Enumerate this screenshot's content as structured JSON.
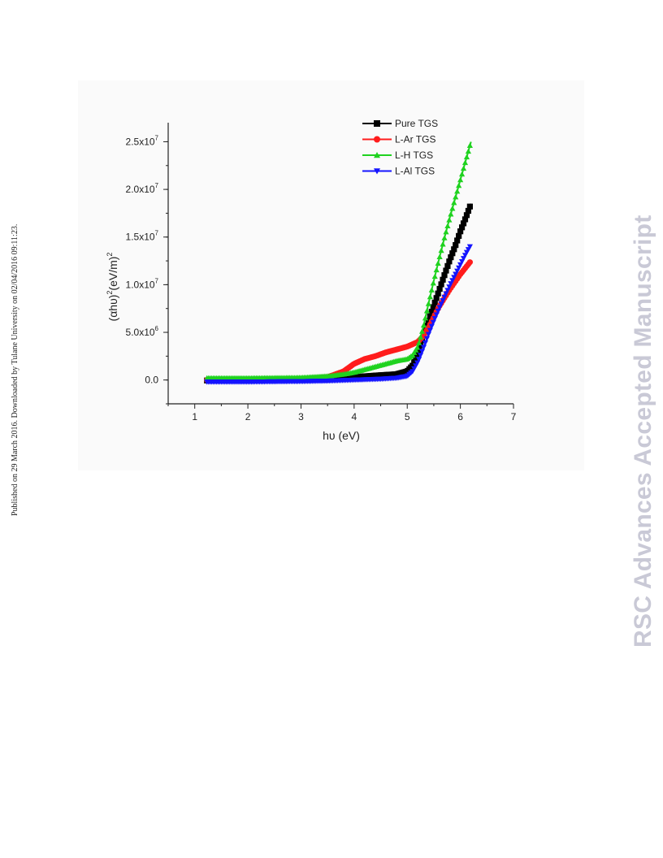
{
  "side_note": "Published on 29 March 2016. Downloaded by Tulane University on 02/04/2016 09:11:23.",
  "watermark": "RSC Advances Accepted Manuscript",
  "chart_data": {
    "type": "scatter",
    "title": "",
    "xlabel": "hυ (eV)",
    "ylabel": "(αhυ)²(eV/m)²",
    "xlim": [
      0.5,
      7
    ],
    "ylim": [
      -2500000,
      27000000
    ],
    "x_ticks": [
      1,
      2,
      3,
      4,
      5,
      6,
      7
    ],
    "x_tick_labels": [
      "1",
      "2",
      "3",
      "4",
      "5",
      "6",
      "7"
    ],
    "y_ticks": [
      0,
      5000000,
      10000000,
      15000000,
      20000000,
      25000000
    ],
    "y_tick_labels": [
      {
        "mantissa": "0.0",
        "exp": ""
      },
      {
        "mantissa": "5.0x10",
        "exp": "6"
      },
      {
        "mantissa": "1.0x10",
        "exp": "7"
      },
      {
        "mantissa": "1.5x10",
        "exp": "7"
      },
      {
        "mantissa": "2.0x10",
        "exp": "7"
      },
      {
        "mantissa": "2.5x10",
        "exp": "7"
      }
    ],
    "legend_position": "top-right",
    "grid": false,
    "series": [
      {
        "name": "Pure TGS",
        "color": "#000000",
        "marker": "square",
        "points": [
          [
            1.23,
            -50000
          ],
          [
            2.0,
            -30000
          ],
          [
            3.0,
            0
          ],
          [
            3.5,
            50000
          ],
          [
            4.0,
            300000
          ],
          [
            4.5,
            500000
          ],
          [
            4.8,
            600000
          ],
          [
            5.0,
            900000
          ],
          [
            5.1,
            1500000
          ],
          [
            5.2,
            2800000
          ],
          [
            5.3,
            4500000
          ],
          [
            5.4,
            6200000
          ],
          [
            5.5,
            7800000
          ],
          [
            5.6,
            9400000
          ],
          [
            5.7,
            11000000
          ],
          [
            5.8,
            12600000
          ],
          [
            5.9,
            14000000
          ],
          [
            6.0,
            15600000
          ],
          [
            6.1,
            17000000
          ],
          [
            6.2,
            18500000
          ]
        ]
      },
      {
        "name": "L-Ar TGS",
        "color": "#ff1c1c",
        "marker": "circle",
        "points": [
          [
            1.23,
            0
          ],
          [
            2.0,
            50000
          ],
          [
            3.0,
            100000
          ],
          [
            3.5,
            300000
          ],
          [
            3.8,
            900000
          ],
          [
            4.0,
            1700000
          ],
          [
            4.2,
            2200000
          ],
          [
            4.4,
            2500000
          ],
          [
            4.6,
            2900000
          ],
          [
            4.8,
            3200000
          ],
          [
            5.0,
            3500000
          ],
          [
            5.2,
            4000000
          ],
          [
            5.3,
            4600000
          ],
          [
            5.4,
            5500000
          ],
          [
            5.5,
            6600000
          ],
          [
            5.6,
            7700000
          ],
          [
            5.7,
            8600000
          ],
          [
            5.8,
            9500000
          ],
          [
            5.9,
            10300000
          ],
          [
            6.0,
            11100000
          ],
          [
            6.1,
            11800000
          ],
          [
            6.2,
            12500000
          ]
        ]
      },
      {
        "name": "L-H TGS",
        "color": "#1fd21f",
        "marker": "triangle-up",
        "points": [
          [
            1.23,
            200000
          ],
          [
            2.0,
            200000
          ],
          [
            3.0,
            250000
          ],
          [
            3.5,
            400000
          ],
          [
            3.8,
            600000
          ],
          [
            4.0,
            800000
          ],
          [
            4.2,
            1100000
          ],
          [
            4.4,
            1400000
          ],
          [
            4.6,
            1700000
          ],
          [
            4.8,
            2000000
          ],
          [
            5.0,
            2200000
          ],
          [
            5.1,
            2600000
          ],
          [
            5.2,
            3500000
          ],
          [
            5.3,
            5500000
          ],
          [
            5.4,
            8000000
          ],
          [
            5.5,
            10400000
          ],
          [
            5.6,
            12700000
          ],
          [
            5.7,
            14900000
          ],
          [
            5.8,
            17000000
          ],
          [
            5.9,
            19000000
          ],
          [
            6.0,
            21000000
          ],
          [
            6.1,
            23000000
          ],
          [
            6.2,
            25000000
          ]
        ]
      },
      {
        "name": "L-Al TGS",
        "color": "#1414ff",
        "marker": "triangle-down",
        "points": [
          [
            1.23,
            -200000
          ],
          [
            2.0,
            -200000
          ],
          [
            3.0,
            -150000
          ],
          [
            3.5,
            -100000
          ],
          [
            4.0,
            0
          ],
          [
            4.5,
            100000
          ],
          [
            4.8,
            200000
          ],
          [
            5.0,
            400000
          ],
          [
            5.1,
            900000
          ],
          [
            5.2,
            1900000
          ],
          [
            5.3,
            3300000
          ],
          [
            5.4,
            4800000
          ],
          [
            5.5,
            6200000
          ],
          [
            5.6,
            7500000
          ],
          [
            5.7,
            8700000
          ],
          [
            5.8,
            9900000
          ],
          [
            5.9,
            11000000
          ],
          [
            6.0,
            12100000
          ],
          [
            6.1,
            13200000
          ],
          [
            6.2,
            14200000
          ]
        ]
      }
    ]
  }
}
